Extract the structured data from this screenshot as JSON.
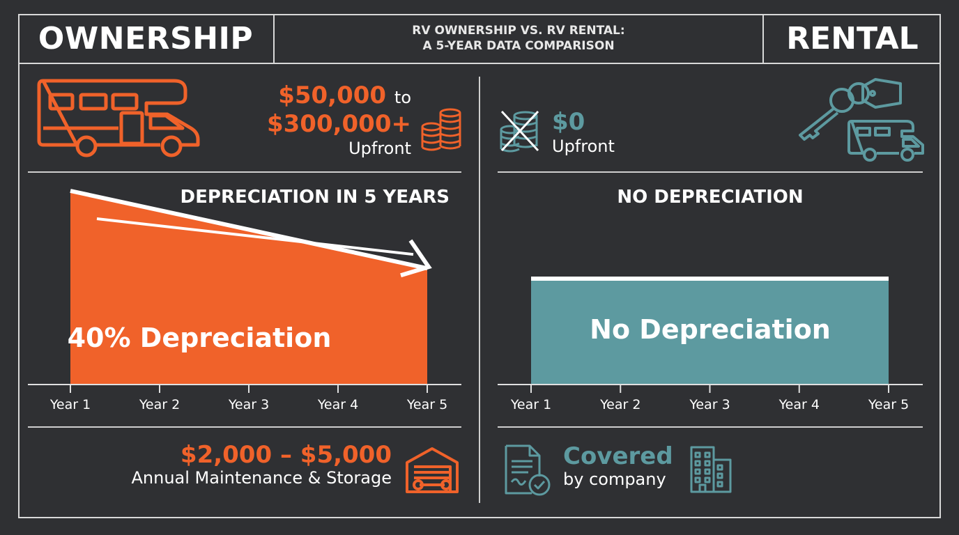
{
  "header": {
    "left_label": "OWNERSHIP",
    "title_line1": "RV OWNERSHIP VS. RV RENTAL:",
    "title_line2": "A 5-YEAR DATA COMPARISON",
    "right_label": "RENTAL"
  },
  "ownership": {
    "upfront_amount_from": "$50,000",
    "upfront_connector": "to",
    "upfront_amount_to": "$300,000+",
    "upfront_label": "Upfront",
    "section_title": "DEPRECIATION IN 5 YEARS",
    "chart_label": "40% Depreciation",
    "maintenance_amount": "$2,000 – $5,000",
    "maintenance_label": "Annual Maintenance & Storage"
  },
  "rental": {
    "upfront_amount": "$0",
    "upfront_label": "Upfront",
    "section_title": "NO DEPRECIATION",
    "chart_label": "No Depreciation",
    "maintenance_amount": "Covered",
    "maintenance_label": "by company"
  },
  "colors": {
    "ownership_accent": "#f0622a",
    "rental_accent": "#5d9aa0",
    "background": "#2f3033"
  },
  "icons": {
    "ownership_vehicle": "motorhome-icon",
    "ownership_cost": "coin-stack-icon",
    "ownership_maintenance": "garage-wrench-icon",
    "rental_cost": "crossed-coins-icon",
    "rental_vehicle": "key-tag-rv-icon",
    "rental_document": "document-check-icon",
    "rental_company": "office-building-icon"
  },
  "chart_data": [
    {
      "type": "area",
      "categories": [
        "Year 1",
        "Year 2",
        "Year 3",
        "Year 4",
        "Year 5"
      ],
      "series": [
        {
          "values": [
            100,
            90,
            80,
            70,
            60
          ]
        }
      ],
      "annotation": "40% Depreciation",
      "ylim": [
        0,
        100
      ]
    },
    {
      "type": "area",
      "categories": [
        "Year 1",
        "Year 2",
        "Year 3",
        "Year 4",
        "Year 5"
      ],
      "series": [
        {
          "values": [
            100,
            100,
            100,
            100,
            100
          ]
        }
      ],
      "annotation": "No Depreciation",
      "ylim": [
        0,
        100
      ]
    }
  ]
}
